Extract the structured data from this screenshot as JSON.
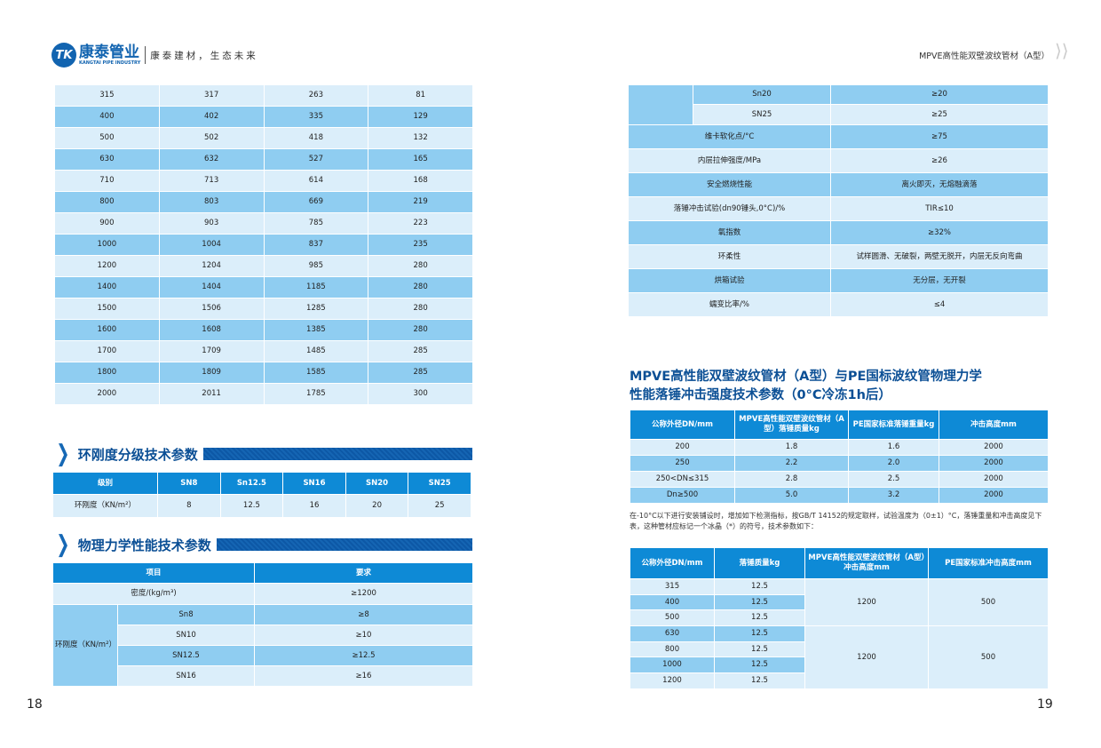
{
  "header": {
    "logo_brand": "康泰管业",
    "logo_sub": "KANGTAI PIPE INDUSTRY",
    "logo_mark": "TK",
    "slogan": "康泰建材，生态未来",
    "right_title": "MPVE高性能双壁波纹管材（A型）"
  },
  "colors": {
    "header_blue": "#0e8ad6",
    "row_light": "#dbeefa",
    "row_medium": "#8fcdf1",
    "title_blue": "#0b4f95"
  },
  "left": {
    "size_table": {
      "rows": [
        [
          "315",
          "317",
          "263",
          "81"
        ],
        [
          "400",
          "402",
          "335",
          "129"
        ],
        [
          "500",
          "502",
          "418",
          "132"
        ],
        [
          "630",
          "632",
          "527",
          "165"
        ],
        [
          "710",
          "713",
          "614",
          "168"
        ],
        [
          "800",
          "803",
          "669",
          "219"
        ],
        [
          "900",
          "903",
          "785",
          "223"
        ],
        [
          "1000",
          "1004",
          "837",
          "235"
        ],
        [
          "1200",
          "1204",
          "985",
          "280"
        ],
        [
          "1400",
          "1404",
          "1185",
          "280"
        ],
        [
          "1500",
          "1506",
          "1285",
          "280"
        ],
        [
          "1600",
          "1608",
          "1385",
          "280"
        ],
        [
          "1700",
          "1709",
          "1485",
          "285"
        ],
        [
          "1800",
          "1809",
          "1585",
          "285"
        ],
        [
          "2000",
          "2011",
          "1785",
          "300"
        ]
      ]
    },
    "ring_section": {
      "title": "环刚度分级技术参数",
      "headers": [
        "级别",
        "SN8",
        "Sn12.5",
        "SN16",
        "SN20",
        "SN25"
      ],
      "row": [
        "环刚度（KN/m²）",
        "8",
        "12.5",
        "16",
        "20",
        "25"
      ]
    },
    "phys_section": {
      "title": "物理力学性能技术参数",
      "headers": [
        "项目",
        "要求"
      ],
      "density": [
        "密度/(kg/m³)",
        "≥1200"
      ],
      "ring_label": "环刚度（KN/m²）",
      "ring_rows": [
        [
          "Sn8",
          "≥8"
        ],
        [
          "SN10",
          "≥10"
        ],
        [
          "SN12.5",
          "≥12.5"
        ],
        [
          "SN16",
          "≥16"
        ]
      ]
    },
    "page_number": "18"
  },
  "right": {
    "phys_cont": {
      "ring_rows": [
        [
          "Sn20",
          "≥20"
        ],
        [
          "SN25",
          "≥25"
        ]
      ],
      "rows": [
        [
          "维卡软化点/°C",
          "≥75"
        ],
        [
          "内层拉伸强度/MPa",
          "≥26"
        ],
        [
          "安全燃烧性能",
          "离火即灭，无熔融滴落"
        ],
        [
          "落锤冲击试验(dn90锤头,0°C)/%",
          "TIR≤10"
        ],
        [
          "氧指数",
          "≥32%"
        ],
        [
          "环柔性",
          "试样圆滑、无破裂，两壁无脱开，内层无反向弯曲"
        ],
        [
          "烘箱试验",
          "无分层，无开裂"
        ],
        [
          "蠕变比率/%",
          "≤4"
        ]
      ]
    },
    "impact_title": [
      "MPVE高性能双壁波纹管材（A型）与PE国标波纹管物理力学",
      "性能落锤冲击强度技术参数（0°C冷冻1h后）"
    ],
    "impact_table": {
      "headers": [
        "公称外径DN/mm",
        "MPVE高性能双壁波纹管材（A型）落锤质量kg",
        "PE国家标准落锤重量kg",
        "冲击高度mm"
      ],
      "rows": [
        [
          "200",
          "1.8",
          "1.6",
          "2000"
        ],
        [
          "250",
          "2.2",
          "2.0",
          "2000"
        ],
        [
          "250<DN≤315",
          "2.8",
          "2.5",
          "2000"
        ],
        [
          "Dn≥500",
          "5.0",
          "3.2",
          "2000"
        ]
      ]
    },
    "note": "在-10°C以下进行安装铺设时，增加如下检测指标，按GB/T 14152的规定取样，试验温度为（0±1）°C，落锤重量和冲击高度见下表，这种管材应标记一个冰晶（*）的符号，技术参数如下：",
    "cold_table": {
      "headers": [
        "公称外径DN/mm",
        "落锤质量kg",
        "MPVE高性能双壁波纹管材（A型）冲击高度mm",
        "PE国家标准冲击高度mm"
      ],
      "rows": [
        [
          "315",
          "12.5"
        ],
        [
          "400",
          "12.5"
        ],
        [
          "500",
          "12.5"
        ],
        [
          "630",
          "12.5"
        ],
        [
          "800",
          "12.5"
        ],
        [
          "1000",
          "12.5"
        ],
        [
          "1200",
          "12.5"
        ]
      ],
      "groups": [
        [
          "1200",
          "500"
        ],
        [
          "1200",
          "500"
        ]
      ]
    },
    "page_number": "19"
  }
}
